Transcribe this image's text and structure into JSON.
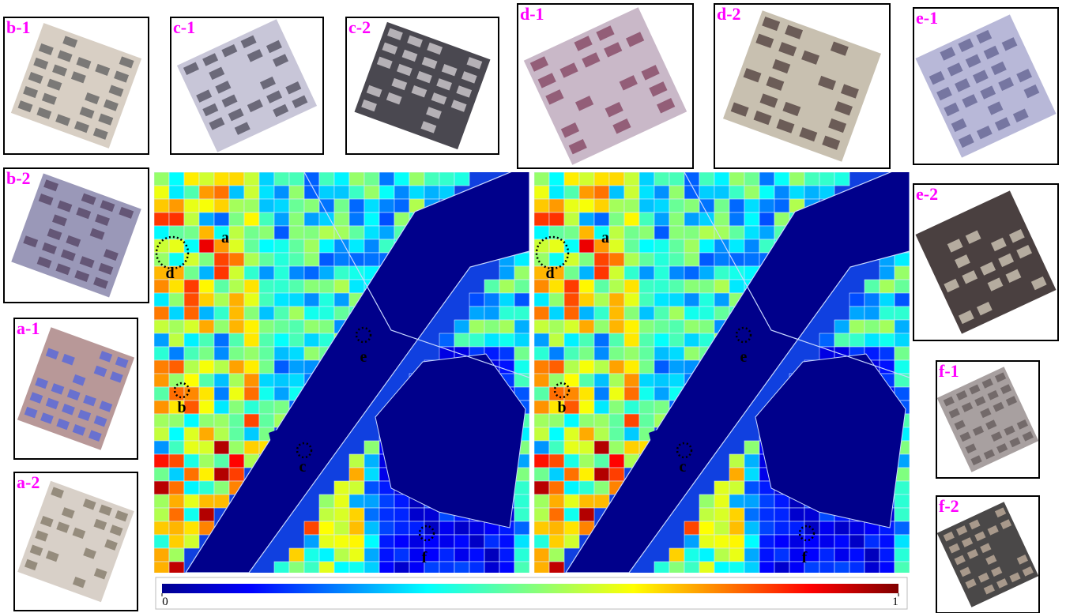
{
  "thumbnails": [
    {
      "label": "b-1"
    },
    {
      "label": "c-1"
    },
    {
      "label": "c-2"
    },
    {
      "label": "d-1"
    },
    {
      "label": "d-2"
    },
    {
      "label": "e-1"
    },
    {
      "label": "b-2"
    },
    {
      "label": "e-2"
    },
    {
      "label": "a-1"
    },
    {
      "label": "f-1"
    },
    {
      "label": "a-2"
    },
    {
      "label": "f-2"
    }
  ],
  "maps": [
    {
      "markers": [
        {
          "label": "a"
        },
        {
          "label": "d"
        },
        {
          "label": "e"
        },
        {
          "label": "b"
        },
        {
          "label": "c"
        },
        {
          "label": "f"
        }
      ]
    },
    {
      "markers": [
        {
          "label": "a"
        },
        {
          "label": "d"
        },
        {
          "label": "e"
        },
        {
          "label": "b"
        },
        {
          "label": "c"
        },
        {
          "label": "f"
        }
      ]
    }
  ],
  "colorbar": {
    "range": [
      0,
      1
    ],
    "ticks": [
      0,
      1
    ]
  }
}
